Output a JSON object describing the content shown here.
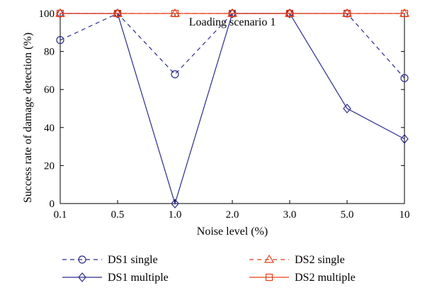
{
  "chart_data": {
    "type": "line",
    "title": "Loading scenario 1",
    "xlabel": "Noise level (%)",
    "ylabel": "Success rate of damage detection (%)",
    "categories": [
      "0.1",
      "0.5",
      "1.0",
      "2.0",
      "3.0",
      "5.0",
      "10"
    ],
    "ylim": [
      0,
      100
    ],
    "yticks": [
      0,
      20,
      40,
      60,
      80,
      100
    ],
    "grid": false,
    "legend_position": "below",
    "series": [
      {
        "name": "DS1 single",
        "values": [
          86,
          100,
          68,
          100,
          100,
          100,
          66
        ],
        "color": "#2b2b8c",
        "dash": "dashed",
        "marker": "circle"
      },
      {
        "name": "DS1 multiple",
        "values": [
          100,
          100,
          0,
          100,
          100,
          50,
          34
        ],
        "color": "#2b2b8c",
        "dash": "solid",
        "marker": "diamond"
      },
      {
        "name": "DS2 single",
        "values": [
          100,
          100,
          100,
          100,
          100,
          100,
          100
        ],
        "color": "#e8401c",
        "dash": "dashed",
        "marker": "triangle"
      },
      {
        "name": "DS2 multiple",
        "values": [
          100,
          100,
          100,
          100,
          100,
          100,
          100
        ],
        "color": "#e8401c",
        "dash": "solid",
        "marker": "square"
      }
    ]
  }
}
